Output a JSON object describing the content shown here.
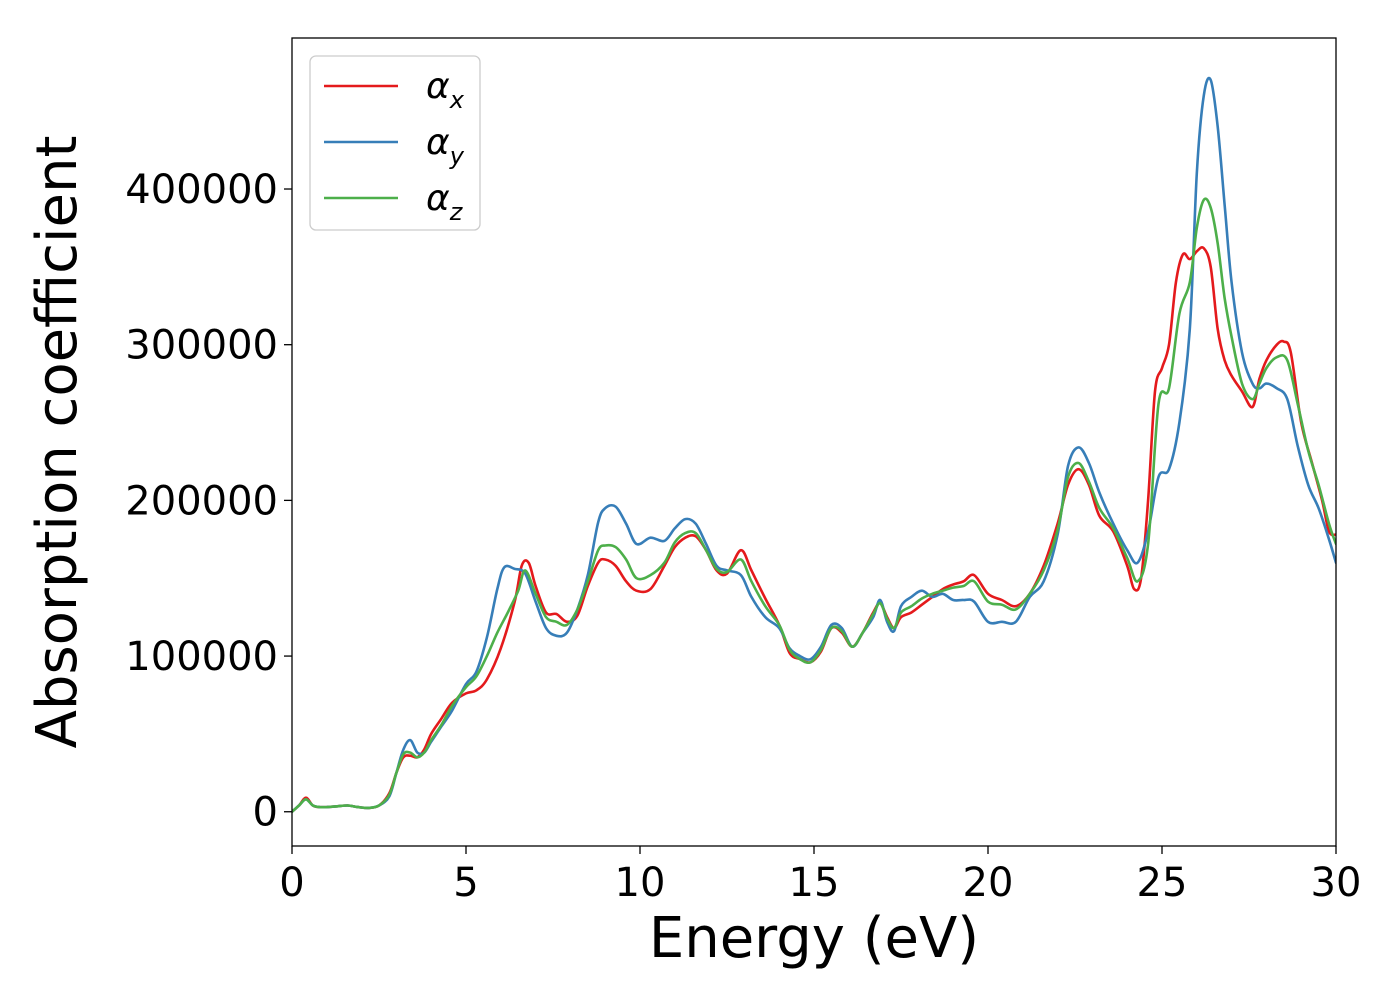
{
  "chart_data": {
    "type": "line",
    "title": "",
    "xlabel": "Energy (eV)",
    "ylabel": "Absorption coefficient",
    "xlim": [
      0,
      30
    ],
    "ylim": [
      -22000,
      497000
    ],
    "xticks": [
      0,
      5,
      10,
      15,
      20,
      25,
      30
    ],
    "yticks": [
      0,
      100000,
      200000,
      300000,
      400000
    ],
    "grid": false,
    "legend": "top-left",
    "series": [
      {
        "name": "α",
        "subscript": "x",
        "color": "#e41a1c",
        "x": [
          0,
          0.2,
          0.4,
          0.6,
          0.8,
          1.0,
          1.3,
          1.6,
          1.9,
          2.2,
          2.5,
          2.8,
          3.0,
          3.2,
          3.4,
          3.6,
          3.8,
          4.0,
          4.3,
          4.6,
          5.0,
          5.3,
          5.6,
          6.0,
          6.4,
          6.6,
          6.8,
          7.0,
          7.3,
          7.6,
          7.9,
          8.2,
          8.5,
          8.8,
          9.0,
          9.3,
          9.6,
          9.9,
          10.3,
          10.7,
          11.0,
          11.3,
          11.6,
          11.9,
          12.2,
          12.5,
          12.9,
          13.2,
          13.6,
          14.0,
          14.3,
          14.6,
          14.9,
          15.2,
          15.5,
          15.8,
          16.1,
          16.4,
          16.7,
          16.9,
          17.1,
          17.3,
          17.5,
          17.8,
          18.1,
          18.4,
          18.7,
          19.0,
          19.3,
          19.6,
          20.0,
          20.4,
          20.8,
          21.2,
          21.6,
          22.0,
          22.3,
          22.6,
          22.9,
          23.2,
          23.6,
          24.0,
          24.2,
          24.4,
          24.6,
          24.8,
          25.0,
          25.2,
          25.4,
          25.6,
          25.8,
          26.0,
          26.2,
          26.4,
          26.6,
          26.8,
          27.0,
          27.3,
          27.6,
          27.8,
          28.0,
          28.3,
          28.5,
          28.7,
          29.0,
          29.3,
          29.6,
          29.8,
          30.0
        ],
        "y": [
          0,
          4000,
          9000,
          4000,
          3000,
          3000,
          3500,
          4000,
          3000,
          2500,
          4000,
          12000,
          25000,
          35000,
          36000,
          35000,
          40000,
          50000,
          60000,
          70000,
          76000,
          78000,
          85000,
          105000,
          135000,
          158000,
          160000,
          145000,
          128000,
          127000,
          122000,
          126000,
          145000,
          160000,
          162000,
          158000,
          148000,
          142000,
          143000,
          158000,
          170000,
          176000,
          177000,
          168000,
          155000,
          153000,
          168000,
          155000,
          137000,
          120000,
          102000,
          98000,
          96000,
          103000,
          118000,
          115000,
          106000,
          115000,
          128000,
          134000,
          125000,
          118000,
          125000,
          128000,
          133000,
          138000,
          143000,
          146000,
          148000,
          152000,
          140000,
          136000,
          132000,
          140000,
          158000,
          185000,
          210000,
          220000,
          210000,
          190000,
          180000,
          158000,
          143000,
          150000,
          200000,
          270000,
          285000,
          300000,
          340000,
          358000,
          355000,
          360000,
          362000,
          350000,
          310000,
          290000,
          280000,
          270000,
          260000,
          278000,
          290000,
          300000,
          302000,
          295000,
          250000,
          225000,
          200000,
          180000,
          178000
        ]
      },
      {
        "name": "α",
        "subscript": "y",
        "color": "#377eb8",
        "x": [
          0,
          0.2,
          0.4,
          0.6,
          0.8,
          1.0,
          1.3,
          1.6,
          1.9,
          2.2,
          2.5,
          2.8,
          3.0,
          3.2,
          3.4,
          3.6,
          3.8,
          4.0,
          4.3,
          4.6,
          5.0,
          5.3,
          5.6,
          5.9,
          6.1,
          6.4,
          6.7,
          7.0,
          7.3,
          7.6,
          7.9,
          8.2,
          8.5,
          8.8,
          9.0,
          9.3,
          9.6,
          9.9,
          10.3,
          10.7,
          11.0,
          11.3,
          11.6,
          11.9,
          12.2,
          12.5,
          12.9,
          13.2,
          13.6,
          14.0,
          14.3,
          14.6,
          14.9,
          15.2,
          15.5,
          15.8,
          16.1,
          16.4,
          16.7,
          16.9,
          17.1,
          17.3,
          17.5,
          17.8,
          18.1,
          18.4,
          18.7,
          19.0,
          19.3,
          19.6,
          20.0,
          20.4,
          20.8,
          21.2,
          21.6,
          22.0,
          22.3,
          22.6,
          22.9,
          23.2,
          23.6,
          24.0,
          24.3,
          24.6,
          24.9,
          25.2,
          25.5,
          25.8,
          26.0,
          26.2,
          26.4,
          26.6,
          26.8,
          27.0,
          27.3,
          27.6,
          27.8,
          28.0,
          28.3,
          28.6,
          28.9,
          29.2,
          29.5,
          29.8,
          30.0
        ],
        "y": [
          0,
          4000,
          8000,
          4000,
          3000,
          3000,
          3500,
          4000,
          3000,
          2500,
          4000,
          10000,
          25000,
          40000,
          46000,
          38000,
          38000,
          45000,
          55000,
          65000,
          82000,
          90000,
          112000,
          143000,
          157000,
          156000,
          153000,
          135000,
          118000,
          113000,
          115000,
          130000,
          152000,
          186000,
          195000,
          196000,
          185000,
          172000,
          176000,
          174000,
          182000,
          188000,
          185000,
          172000,
          158000,
          155000,
          152000,
          138000,
          125000,
          118000,
          105000,
          100000,
          98000,
          106000,
          120000,
          118000,
          106000,
          115000,
          125000,
          136000,
          122000,
          116000,
          132000,
          138000,
          142000,
          138000,
          140000,
          136000,
          136000,
          135000,
          122000,
          122000,
          122000,
          138000,
          148000,
          178000,
          222000,
          234000,
          224000,
          205000,
          185000,
          168000,
          160000,
          180000,
          215000,
          220000,
          250000,
          310000,
          410000,
          460000,
          470000,
          440000,
          390000,
          340000,
          295000,
          275000,
          272000,
          275000,
          272000,
          265000,
          235000,
          210000,
          195000,
          175000,
          160000
        ]
      },
      {
        "name": "α",
        "subscript": "z",
        "color": "#4daf4a",
        "x": [
          0,
          0.2,
          0.4,
          0.6,
          0.8,
          1.0,
          1.3,
          1.6,
          1.9,
          2.2,
          2.5,
          2.8,
          3.0,
          3.2,
          3.4,
          3.6,
          3.8,
          4.0,
          4.3,
          4.6,
          5.0,
          5.3,
          5.6,
          5.9,
          6.2,
          6.5,
          6.7,
          7.0,
          7.3,
          7.6,
          7.9,
          8.2,
          8.5,
          8.8,
          9.0,
          9.3,
          9.6,
          9.9,
          10.3,
          10.7,
          11.0,
          11.3,
          11.6,
          11.9,
          12.2,
          12.5,
          12.9,
          13.2,
          13.6,
          14.0,
          14.3,
          14.6,
          14.9,
          15.2,
          15.5,
          15.8,
          16.1,
          16.4,
          16.7,
          16.9,
          17.1,
          17.3,
          17.5,
          17.8,
          18.1,
          18.4,
          18.7,
          19.0,
          19.3,
          19.6,
          20.0,
          20.4,
          20.8,
          21.2,
          21.6,
          22.0,
          22.3,
          22.6,
          22.9,
          23.2,
          23.6,
          24.0,
          24.3,
          24.6,
          24.9,
          25.2,
          25.5,
          25.8,
          26.0,
          26.2,
          26.4,
          26.6,
          26.8,
          27.0,
          27.3,
          27.6,
          27.8,
          28.0,
          28.3,
          28.6,
          28.9,
          29.2,
          29.5,
          29.8,
          30.0
        ],
        "y": [
          0,
          4000,
          8000,
          4000,
          3000,
          3000,
          3500,
          4000,
          3000,
          2500,
          4000,
          11000,
          25000,
          37000,
          38000,
          35000,
          38000,
          46000,
          56000,
          68000,
          80000,
          87000,
          100000,
          115000,
          128000,
          142000,
          155000,
          140000,
          125000,
          122000,
          120000,
          130000,
          148000,
          168000,
          171000,
          170000,
          162000,
          150000,
          152000,
          160000,
          173000,
          179000,
          179000,
          168000,
          156000,
          154000,
          162000,
          148000,
          132000,
          120000,
          104000,
          98000,
          96000,
          104000,
          118000,
          116000,
          106000,
          115000,
          127000,
          134000,
          124000,
          118000,
          128000,
          132000,
          137000,
          140000,
          142000,
          144000,
          145000,
          148000,
          135000,
          133000,
          130000,
          140000,
          155000,
          181000,
          215000,
          224000,
          212000,
          195000,
          182000,
          163000,
          148000,
          172000,
          262000,
          272000,
          320000,
          340000,
          375000,
          393000,
          388000,
          365000,
          330000,
          305000,
          275000,
          265000,
          275000,
          285000,
          292000,
          290000,
          262000,
          232000,
          210000,
          185000,
          172000
        ]
      }
    ]
  }
}
